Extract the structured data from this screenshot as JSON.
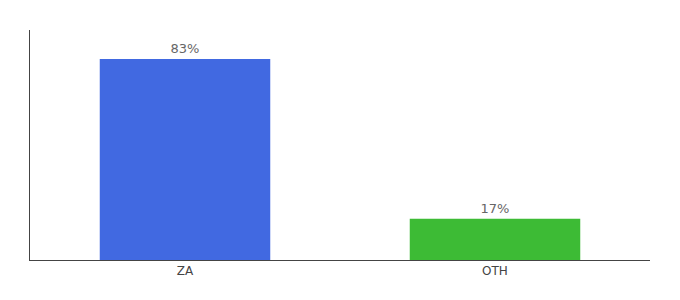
{
  "chart_data": {
    "type": "bar",
    "categories": [
      "ZA",
      "OTH"
    ],
    "values": [
      83,
      17
    ],
    "value_labels": [
      "83%",
      "17%"
    ],
    "data_labels": true,
    "colors": [
      "#4169e1",
      "#3dbb35"
    ],
    "ylim": [
      0,
      95
    ],
    "tick_labels": "x",
    "grid": false
  }
}
